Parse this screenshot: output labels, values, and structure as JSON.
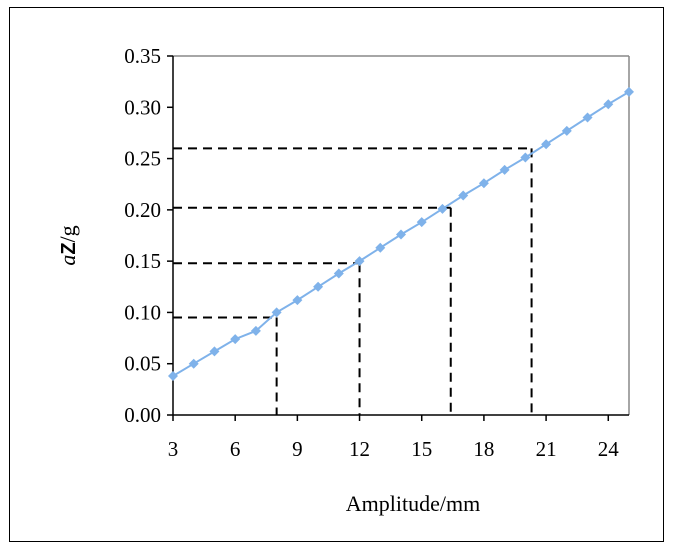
{
  "chart_data": {
    "type": "scatter",
    "title": "",
    "xlabel": "Amplitude/mm",
    "ylabel_parts": {
      "a": "a",
      "z": "Z",
      "slash_g": "/g"
    },
    "xlim": [
      3,
      25
    ],
    "ylim": [
      0,
      0.35
    ],
    "x_ticks": [
      3,
      6,
      9,
      12,
      15,
      18,
      21,
      24
    ],
    "x_tick_labels": [
      "3",
      "6",
      "9",
      "12",
      "15",
      "18",
      "21",
      "24"
    ],
    "y_ticks": [
      0,
      0.05,
      0.1,
      0.15,
      0.2,
      0.25,
      0.3,
      0.35
    ],
    "y_tick_labels": [
      "0.00",
      "0.05",
      "0.10",
      "0.15",
      "0.20",
      "0.25",
      "0.30",
      "0.35"
    ],
    "grid": false,
    "series": [
      {
        "color": "#7fb2ea",
        "marker": "diamond",
        "x": [
          3,
          4,
          5,
          6,
          7,
          8,
          9,
          10,
          11,
          12,
          13,
          14,
          15,
          16,
          17,
          18,
          19,
          20,
          21,
          22,
          23,
          24,
          25
        ],
        "y": [
          0.038,
          0.05,
          0.062,
          0.074,
          0.082,
          0.1,
          0.112,
          0.125,
          0.138,
          0.15,
          0.163,
          0.176,
          0.188,
          0.201,
          0.214,
          0.226,
          0.239,
          0.251,
          0.264,
          0.277,
          0.29,
          0.303,
          0.315
        ]
      }
    ],
    "reference_lines": [
      {
        "x": 8.0,
        "y": 0.095
      },
      {
        "x": 12.0,
        "y": 0.148
      },
      {
        "x": 16.4,
        "y": 0.202
      },
      {
        "x": 20.3,
        "y": 0.26
      }
    ],
    "reference_line_style": "dashed"
  }
}
